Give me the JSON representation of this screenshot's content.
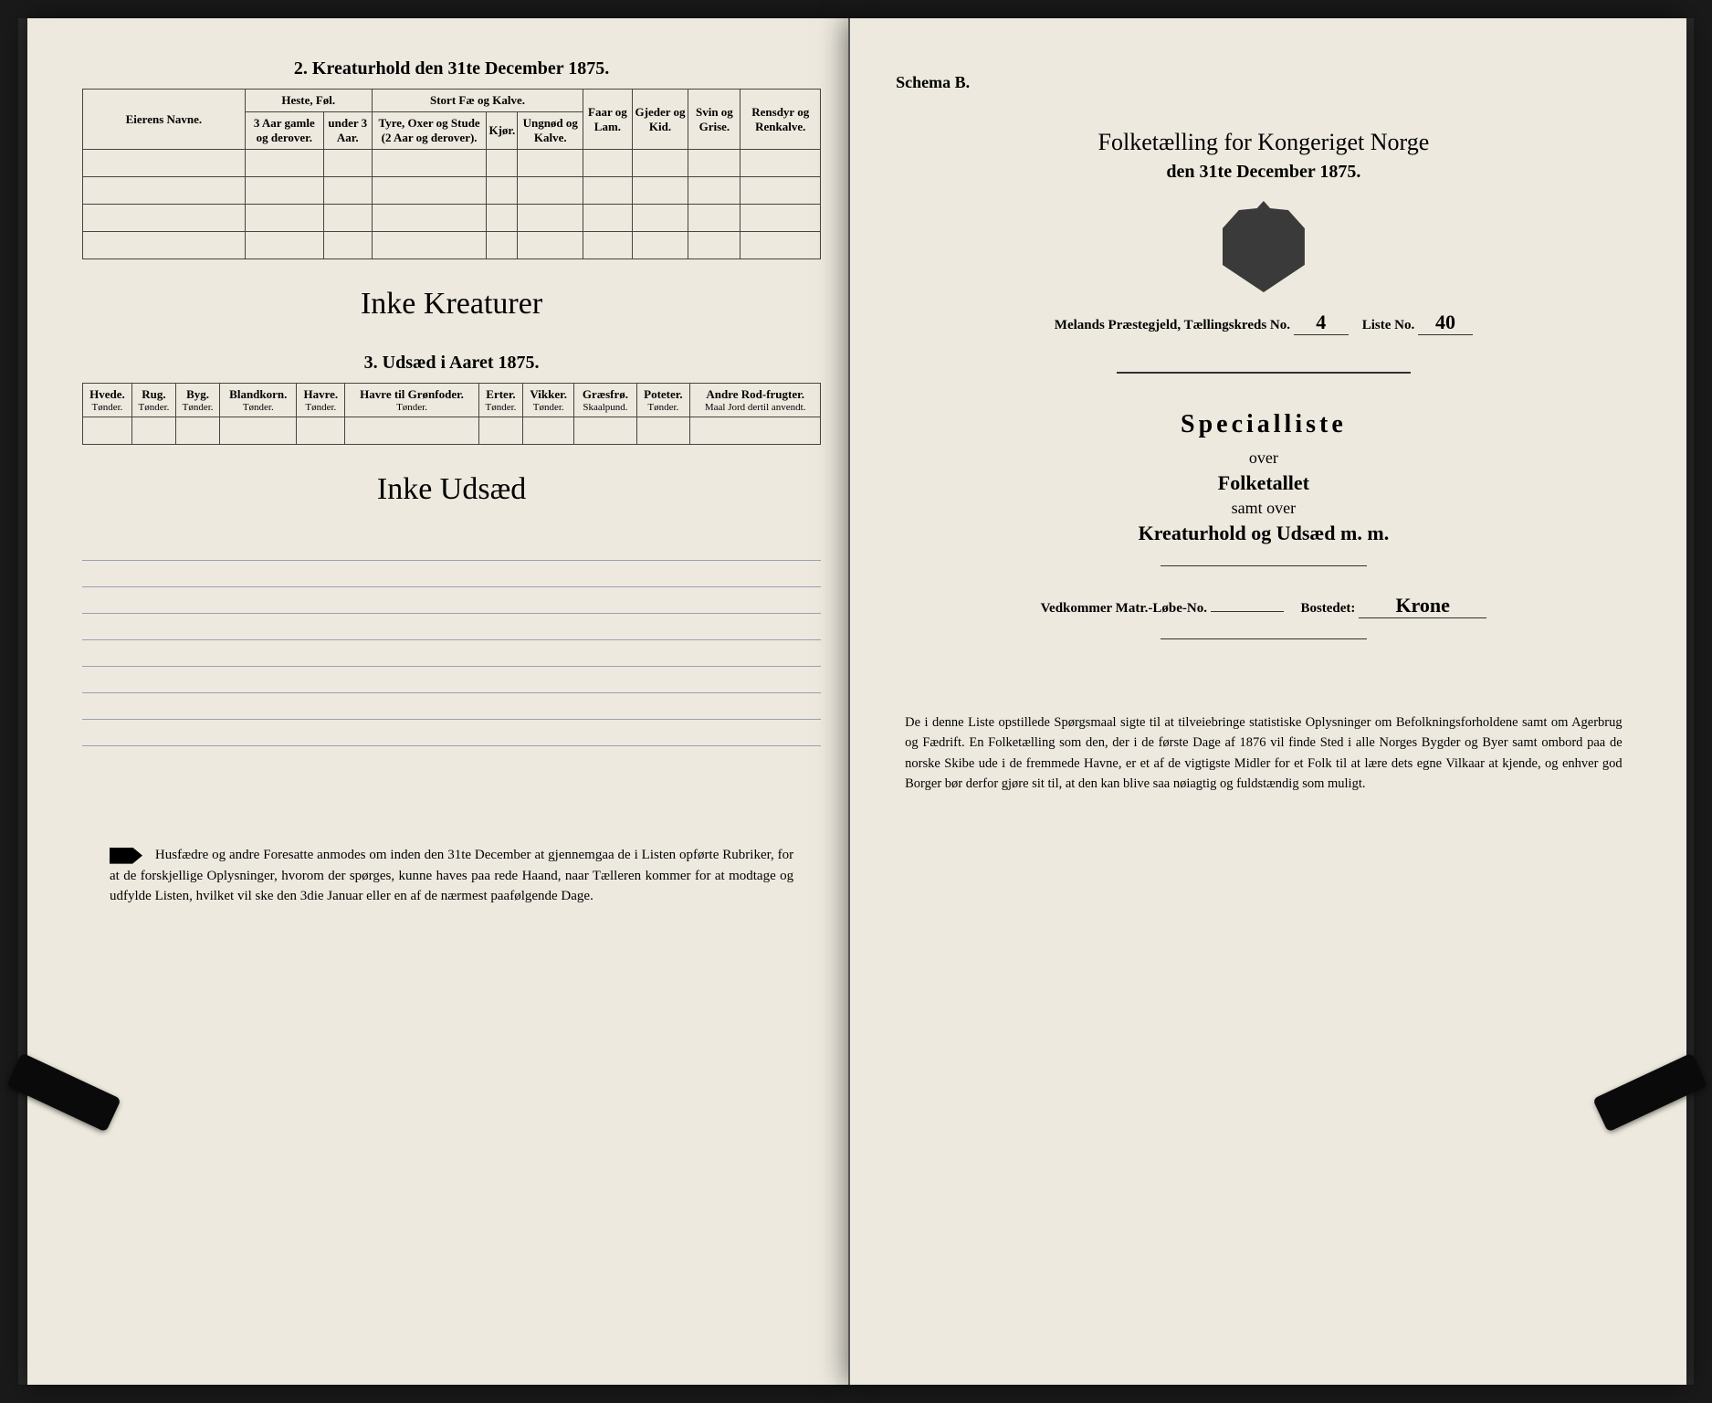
{
  "left": {
    "section2_title": "2. Kreaturhold den 31te December 1875.",
    "table2": {
      "col_owner": "Eierens Navne.",
      "grp_horses": "Heste, Føl.",
      "grp_cattle": "Stort Fæ og Kalve.",
      "col_sheep": "Faar og Lam.",
      "col_goats": "Gjeder og Kid.",
      "col_pigs": "Svin og Grise.",
      "col_reindeer": "Rensdyr og Renkalve.",
      "h_old": "3 Aar gamle og derover.",
      "h_young": "under 3 Aar.",
      "c_bulls": "Tyre, Oxer og Stude (2 Aar og derover).",
      "c_cows": "Kjør.",
      "c_calves": "Ungnød og Kalve."
    },
    "script2": "Inke Kreaturer",
    "section3_title": "3. Udsæd i Aaret 1875.",
    "table3": {
      "cols": [
        "Hvede.",
        "Rug.",
        "Byg.",
        "Blandkorn.",
        "Havre.",
        "Havre til Grønfoder.",
        "Erter.",
        "Vikker.",
        "Græsfrø.",
        "Poteter.",
        "Andre Rod-frugter."
      ],
      "units": [
        "Tønder.",
        "Tønder.",
        "Tønder.",
        "Tønder.",
        "Tønder.",
        "Tønder.",
        "Tønder.",
        "Tønder.",
        "Skaalpund.",
        "Tønder.",
        "Maal Jord dertil anvendt."
      ]
    },
    "script3": "Inke Udsæd",
    "footer": "Husfædre og andre Foresatte anmodes om inden den 31te December at gjennemgaa de i Listen opførte Rubriker, for at de forskjellige Oplysninger, hvorom der spørges, kunne haves paa rede Haand, naar Tælleren kommer for at modtage og udfylde Listen, hvilket vil ske den 3die Januar eller en af de nærmest paafølgende Dage."
  },
  "right": {
    "schema": "Schema B.",
    "title": "Folketælling for Kongeriget Norge",
    "date": "den 31te December 1875.",
    "parish_label": "Melands Præstegjeld,  Tællingskreds No.",
    "kreds_no": "4",
    "liste_label": "Liste No.",
    "liste_no": "40",
    "special_title": "Specialliste",
    "over": "over",
    "folketallet": "Folketallet",
    "samt": "samt over",
    "kreatur": "Kreaturhold og Udsæd m. m.",
    "vedk_label": "Vedkommer Matr.-Løbe-No.",
    "bosted_label": "Bostedet:",
    "bosted_val": "Krone",
    "footer": "De i denne Liste opstillede Spørgsmaal sigte til at tilveiebringe statistiske Oplysninger om Befolkningsforholdene samt om Agerbrug og Fædrift. En Folketælling som den, der i de første Dage af 1876 vil finde Sted i alle Norges Bygder og Byer samt ombord paa de norske Skibe ude i de fremmede Havne, er et af de vigtigste Midler for et Folk til at lære dets egne Vilkaar at kjende, og enhver god Borger bør derfor gjøre sit til, at den kan blive saa nøiagtig og fuldstændig som muligt."
  }
}
